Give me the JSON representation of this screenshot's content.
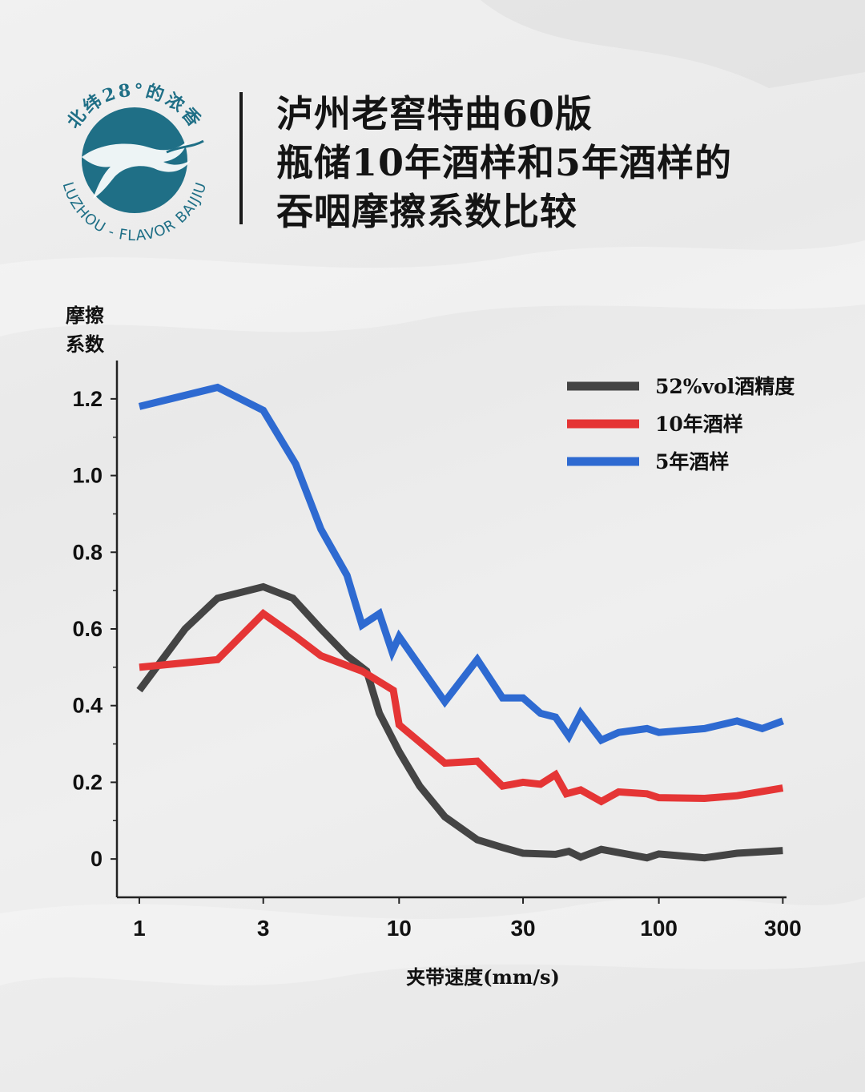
{
  "logo": {
    "top_text": "北纬28°的浓香",
    "bottom_text": "LUZHOU - FLAVOR BAIJIU",
    "color": "#1f6f86"
  },
  "title_lines": [
    "泸州老窖特曲60版",
    "瓶储10年酒样和5年酒样的",
    "吞咽摩擦系数比较"
  ],
  "chart_data": {
    "type": "line",
    "title": "泸州老窖特曲60版瓶储10年酒样和5年酒样的吞咽摩擦系数比较",
    "ylabel_lines": [
      "摩擦",
      "系数"
    ],
    "xlabel": "夹带速度(mm/s)",
    "x_scale": "log",
    "xlim": [
      0.82,
      310
    ],
    "ylim": [
      -0.1,
      1.3
    ],
    "x_ticks": [
      1,
      3,
      10,
      30,
      100,
      300
    ],
    "x_tick_labels": [
      "1",
      "3",
      "10",
      "30",
      "100",
      "300"
    ],
    "y_ticks": [
      0,
      0.2,
      0.4,
      0.6,
      0.8,
      1.0,
      1.2
    ],
    "y_tick_labels": [
      "0",
      "0.2",
      "0.4",
      "0.6",
      "0.8",
      "1.0",
      "1.2"
    ],
    "grid": false,
    "legend_position": "top-right",
    "series": [
      {
        "name": "52%vol酒精度",
        "color": "#444444",
        "points": [
          [
            1,
            0.44
          ],
          [
            1.5,
            0.6
          ],
          [
            2,
            0.68
          ],
          [
            3,
            0.71
          ],
          [
            3.9,
            0.68
          ],
          [
            5,
            0.6
          ],
          [
            6.3,
            0.53
          ],
          [
            7.5,
            0.49
          ],
          [
            8.4,
            0.38
          ],
          [
            10,
            0.28
          ],
          [
            12,
            0.19
          ],
          [
            15,
            0.11
          ],
          [
            20,
            0.05
          ],
          [
            25,
            0.03
          ],
          [
            30,
            0.015
          ],
          [
            40,
            0.012
          ],
          [
            45,
            0.02
          ],
          [
            50,
            0.005
          ],
          [
            60,
            0.025
          ],
          [
            75,
            0.013
          ],
          [
            90,
            0.003
          ],
          [
            100,
            0.013
          ],
          [
            150,
            0.003
          ],
          [
            200,
            0.015
          ],
          [
            300,
            0.022
          ]
        ]
      },
      {
        "name": "10年酒样",
        "color": "#e53535",
        "points": [
          [
            1,
            0.5
          ],
          [
            2,
            0.52
          ],
          [
            3,
            0.64
          ],
          [
            4,
            0.58
          ],
          [
            5,
            0.53
          ],
          [
            7.2,
            0.49
          ],
          [
            9.5,
            0.44
          ],
          [
            10,
            0.35
          ],
          [
            15,
            0.25
          ],
          [
            20,
            0.255
          ],
          [
            25,
            0.19
          ],
          [
            30,
            0.2
          ],
          [
            35,
            0.195
          ],
          [
            40,
            0.22
          ],
          [
            44,
            0.17
          ],
          [
            50,
            0.18
          ],
          [
            60,
            0.15
          ],
          [
            70,
            0.175
          ],
          [
            90,
            0.17
          ],
          [
            100,
            0.16
          ],
          [
            150,
            0.158
          ],
          [
            200,
            0.165
          ],
          [
            300,
            0.185
          ]
        ]
      },
      {
        "name": "5年酒样",
        "color": "#2e6ad1",
        "points": [
          [
            1,
            1.18
          ],
          [
            2,
            1.23
          ],
          [
            3,
            1.17
          ],
          [
            4,
            1.03
          ],
          [
            5,
            0.86
          ],
          [
            6.3,
            0.74
          ],
          [
            7.2,
            0.61
          ],
          [
            8.4,
            0.64
          ],
          [
            9.4,
            0.54
          ],
          [
            10,
            0.58
          ],
          [
            15,
            0.41
          ],
          [
            20,
            0.52
          ],
          [
            25,
            0.42
          ],
          [
            30,
            0.42
          ],
          [
            35,
            0.38
          ],
          [
            40,
            0.37
          ],
          [
            45,
            0.32
          ],
          [
            50,
            0.38
          ],
          [
            60,
            0.31
          ],
          [
            70,
            0.33
          ],
          [
            90,
            0.34
          ],
          [
            100,
            0.33
          ],
          [
            150,
            0.34
          ],
          [
            200,
            0.36
          ],
          [
            250,
            0.34
          ],
          [
            300,
            0.36
          ]
        ]
      }
    ]
  }
}
